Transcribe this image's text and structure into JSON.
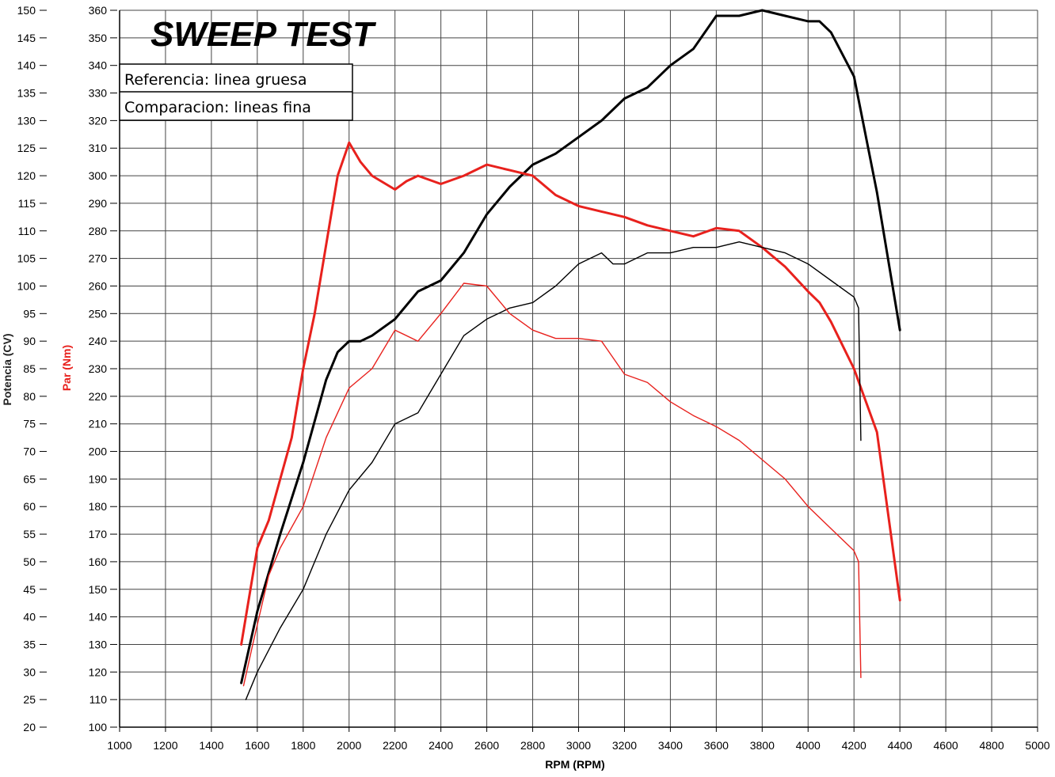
{
  "chart_data": {
    "type": "line",
    "title": "SWEEP TEST",
    "legend": [
      "Referencia: linea gruesa",
      "Comparacion: lineas fina"
    ],
    "xlabel": "RPM (RPM)",
    "ylabel_left": "Potencia (CV)",
    "ylabel_right": "Par (Nm)",
    "xlim": [
      1000,
      5000
    ],
    "ylim_power": [
      20,
      150
    ],
    "ylim_torque": [
      100,
      360
    ],
    "grid": true,
    "x_ticks": [
      "1000",
      "1200",
      "1400",
      "1600",
      "1800",
      "2000",
      "2200",
      "2400",
      "2600",
      "2800",
      "3000",
      "3200",
      "3400",
      "3600",
      "3800",
      "4000",
      "4200",
      "4400",
      "4600",
      "4800",
      "5000"
    ],
    "power_ticks": [
      "20",
      "25",
      "30",
      "35",
      "40",
      "45",
      "50",
      "55",
      "60",
      "65",
      "70",
      "75",
      "80",
      "85",
      "90",
      "95",
      "100",
      "105",
      "110",
      "115",
      "120",
      "125",
      "130",
      "135",
      "140",
      "145",
      "150"
    ],
    "torque_ticks": [
      "100",
      "110",
      "120",
      "130",
      "140",
      "150",
      "160",
      "170",
      "180",
      "190",
      "200",
      "210",
      "220",
      "230",
      "240",
      "250",
      "260",
      "270",
      "280",
      "290",
      "300",
      "310",
      "320",
      "330",
      "340",
      "350",
      "360"
    ],
    "colors": {
      "power": "#000000",
      "torque": "#e8211d",
      "grid": "#444444"
    },
    "series": [
      {
        "name": "Potencia referencia",
        "axis": "power",
        "weight": "thick",
        "points": [
          [
            1530,
            28
          ],
          [
            1600,
            41
          ],
          [
            1700,
            55
          ],
          [
            1800,
            68
          ],
          [
            1900,
            83
          ],
          [
            1950,
            88
          ],
          [
            2000,
            90
          ],
          [
            2050,
            90
          ],
          [
            2100,
            91
          ],
          [
            2200,
            94
          ],
          [
            2300,
            99
          ],
          [
            2400,
            101
          ],
          [
            2500,
            106
          ],
          [
            2600,
            113
          ],
          [
            2700,
            118
          ],
          [
            2800,
            122
          ],
          [
            2900,
            124
          ],
          [
            3000,
            127
          ],
          [
            3100,
            130
          ],
          [
            3200,
            134
          ],
          [
            3300,
            136
          ],
          [
            3400,
            140
          ],
          [
            3500,
            143
          ],
          [
            3600,
            149
          ],
          [
            3700,
            149
          ],
          [
            3800,
            150
          ],
          [
            3900,
            149
          ],
          [
            4000,
            148
          ],
          [
            4050,
            148
          ],
          [
            4100,
            146
          ],
          [
            4200,
            138
          ],
          [
            4300,
            117
          ],
          [
            4400,
            92
          ]
        ]
      },
      {
        "name": "Par referencia",
        "axis": "torque",
        "weight": "thick",
        "points": [
          [
            1530,
            130
          ],
          [
            1560,
            145
          ],
          [
            1600,
            165
          ],
          [
            1650,
            175
          ],
          [
            1700,
            190
          ],
          [
            1750,
            205
          ],
          [
            1800,
            230
          ],
          [
            1850,
            250
          ],
          [
            1900,
            275
          ],
          [
            1950,
            300
          ],
          [
            2000,
            312
          ],
          [
            2050,
            305
          ],
          [
            2100,
            300
          ],
          [
            2200,
            295
          ],
          [
            2250,
            298
          ],
          [
            2300,
            300
          ],
          [
            2400,
            297
          ],
          [
            2500,
            300
          ],
          [
            2600,
            304
          ],
          [
            2700,
            302
          ],
          [
            2800,
            300
          ],
          [
            2900,
            293
          ],
          [
            3000,
            289
          ],
          [
            3100,
            287
          ],
          [
            3200,
            285
          ],
          [
            3300,
            282
          ],
          [
            3400,
            280
          ],
          [
            3500,
            278
          ],
          [
            3600,
            281
          ],
          [
            3700,
            280
          ],
          [
            3800,
            274
          ],
          [
            3900,
            267
          ],
          [
            4000,
            258
          ],
          [
            4050,
            254
          ],
          [
            4100,
            247
          ],
          [
            4200,
            230
          ],
          [
            4300,
            207
          ],
          [
            4400,
            146
          ]
        ]
      },
      {
        "name": "Potencia comparacion",
        "axis": "power",
        "weight": "thin",
        "points": [
          [
            1550,
            25
          ],
          [
            1600,
            30
          ],
          [
            1700,
            38
          ],
          [
            1800,
            45
          ],
          [
            1900,
            55
          ],
          [
            2000,
            63
          ],
          [
            2100,
            68
          ],
          [
            2200,
            75
          ],
          [
            2300,
            77
          ],
          [
            2400,
            84
          ],
          [
            2500,
            91
          ],
          [
            2600,
            94
          ],
          [
            2700,
            96
          ],
          [
            2800,
            97
          ],
          [
            2900,
            100
          ],
          [
            3000,
            104
          ],
          [
            3100,
            106
          ],
          [
            3150,
            104
          ],
          [
            3200,
            104
          ],
          [
            3300,
            106
          ],
          [
            3400,
            106
          ],
          [
            3500,
            107
          ],
          [
            3600,
            107
          ],
          [
            3700,
            108
          ],
          [
            3800,
            107
          ],
          [
            3900,
            106
          ],
          [
            4000,
            104
          ],
          [
            4100,
            101
          ],
          [
            4200,
            98
          ],
          [
            4220,
            96
          ],
          [
            4230,
            72
          ]
        ]
      },
      {
        "name": "Par comparacion",
        "axis": "torque",
        "weight": "thin",
        "points": [
          [
            1540,
            115
          ],
          [
            1580,
            130
          ],
          [
            1650,
            155
          ],
          [
            1700,
            165
          ],
          [
            1800,
            180
          ],
          [
            1900,
            205
          ],
          [
            2000,
            223
          ],
          [
            2100,
            230
          ],
          [
            2200,
            244
          ],
          [
            2300,
            240
          ],
          [
            2400,
            250
          ],
          [
            2500,
            261
          ],
          [
            2600,
            260
          ],
          [
            2700,
            250
          ],
          [
            2800,
            244
          ],
          [
            2900,
            241
          ],
          [
            3000,
            241
          ],
          [
            3100,
            240
          ],
          [
            3200,
            228
          ],
          [
            3300,
            225
          ],
          [
            3400,
            218
          ],
          [
            3500,
            213
          ],
          [
            3600,
            209
          ],
          [
            3700,
            204
          ],
          [
            3800,
            197
          ],
          [
            3900,
            190
          ],
          [
            4000,
            180
          ],
          [
            4100,
            172
          ],
          [
            4200,
            164
          ],
          [
            4220,
            160
          ],
          [
            4230,
            118
          ]
        ]
      }
    ]
  }
}
